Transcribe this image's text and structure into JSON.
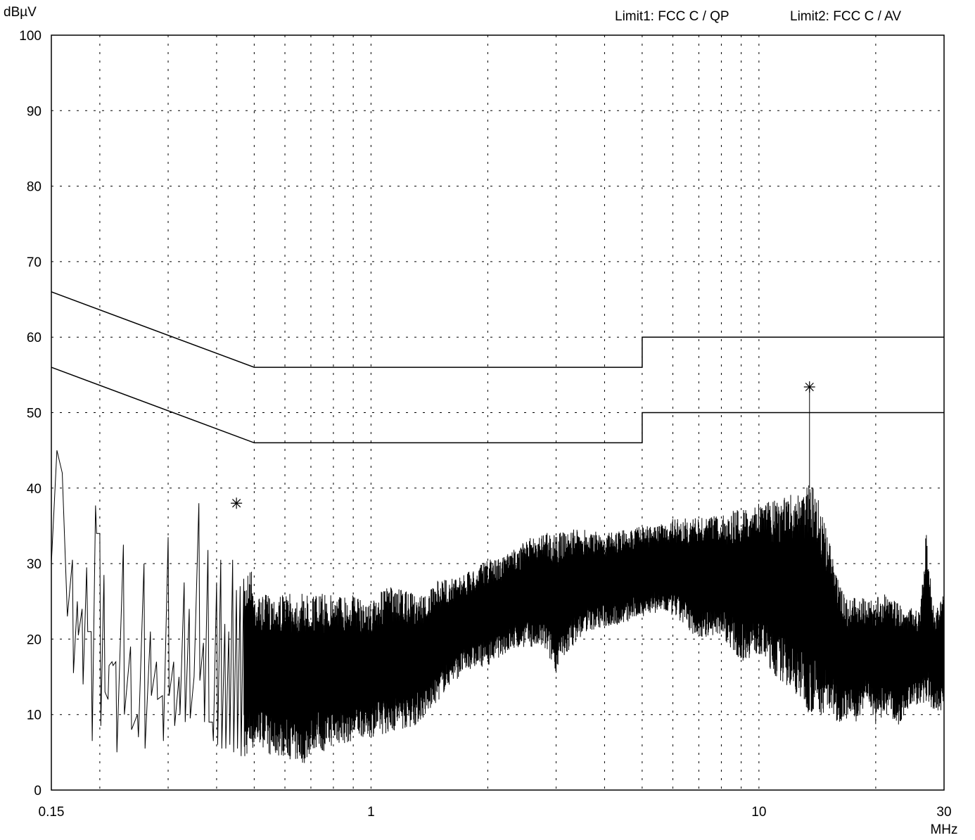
{
  "header": {
    "unit": "dBµV",
    "limit1": "Limit1: FCC C / QP",
    "limit2": "Limit2: FCC C / AV"
  },
  "chart_data": {
    "type": "line",
    "xscale": "log",
    "xlim": [
      0.15,
      30
    ],
    "ylim": [
      0,
      100
    ],
    "ylabel": "dBµV",
    "xlabel": "MHz",
    "grid": true,
    "y_ticks": [
      0,
      10,
      20,
      30,
      40,
      50,
      60,
      70,
      80,
      90,
      100
    ],
    "x_ticks": [
      0.15,
      1,
      10,
      30
    ],
    "x_tick_labels": [
      "0.15",
      "1",
      "10",
      "30"
    ],
    "x_grid": [
      0.2,
      0.3,
      0.4,
      0.5,
      0.6,
      0.7,
      0.8,
      0.9,
      2,
      3,
      4,
      5,
      6,
      7,
      8,
      9,
      20
    ],
    "series": [
      {
        "name": "Limit1: FCC C / QP",
        "x": [
          0.15,
          0.5,
          5,
          5,
          30
        ],
        "y": [
          66,
          56,
          56,
          60,
          60
        ]
      },
      {
        "name": "Limit2: FCC C / AV",
        "x": [
          0.15,
          0.5,
          5,
          5,
          30
        ],
        "y": [
          56,
          46,
          46,
          50,
          50
        ]
      },
      {
        "type": "trace",
        "x": [
          0.15,
          0.155,
          0.16,
          0.165,
          0.17,
          0.175,
          0.18,
          0.185,
          0.19,
          0.195,
          0.2,
          0.205,
          0.21,
          0.215,
          0.22,
          0.23,
          0.24,
          0.25,
          0.26,
          0.27,
          0.28,
          0.29,
          0.3,
          0.31,
          0.32,
          0.33,
          0.34,
          0.35,
          0.36,
          0.37,
          0.38,
          0.39,
          0.4,
          0.41,
          0.42,
          0.43,
          0.44,
          0.45,
          0.46,
          0.47,
          0.48,
          0.49,
          0.5,
          0.52,
          0.54,
          0.56,
          0.58,
          0.6,
          0.62,
          0.65,
          0.68,
          0.7,
          0.72,
          0.75,
          0.78,
          0.8,
          0.85,
          0.9,
          0.95,
          1.0,
          1.1,
          1.2,
          1.3,
          1.4,
          1.5,
          1.6,
          1.8,
          2.0,
          2.2,
          2.5,
          2.8,
          3.0,
          3.3,
          3.6,
          4.0,
          4.5,
          5.0,
          5.5,
          6.0,
          7.0,
          8.0,
          9.0,
          10.0,
          11.0,
          12.0,
          13.0,
          13.5,
          14.0,
          15.0,
          16.0,
          17.0,
          18.0,
          19.0,
          20.0,
          21.0,
          22.0,
          23.0,
          24.0,
          25.0,
          26.0,
          27.0,
          28.0,
          29.0,
          30.0
        ],
        "y_max": [
          30.0,
          45.0,
          42.0,
          23.0,
          30.5,
          25.0,
          24.0,
          29.5,
          21.0,
          37.7,
          34.0,
          28.5,
          12.0,
          17.0,
          17.0,
          32.5,
          19.0,
          10.0,
          30.0,
          21.0,
          17.0,
          12.5,
          33.5,
          17.0,
          15.0,
          27.5,
          24.0,
          15.0,
          38.0,
          19.5,
          31.8,
          9.0,
          27.5,
          30.5,
          22.0,
          21.0,
          30.5,
          26.5,
          27.0,
          28.0,
          29.0,
          30.0,
          26.5,
          25.5,
          26.0,
          26.0,
          26.0,
          26.0,
          26.0,
          26.0,
          26.0,
          26.0,
          26.0,
          26.0,
          26.0,
          26.0,
          26.0,
          26.0,
          25.0,
          25.0,
          27.0,
          26.5,
          26.0,
          26.0,
          28.0,
          28.0,
          29.0,
          30.5,
          31.0,
          33.0,
          34.5,
          34.0,
          34.5,
          34.5,
          34.0,
          34.5,
          35.0,
          35.0,
          36.0,
          36.0,
          36.5,
          37.5,
          38.0,
          38.5,
          39.0,
          40.5,
          41.0,
          40.0,
          34.0,
          28.0,
          25.0,
          26.0,
          25.0,
          25.5,
          26.0,
          25.5,
          25.0,
          24.0,
          24.5,
          23.5,
          34.5,
          25.0,
          24.5,
          26.0
        ],
        "y_min": [
          30.0,
          45.0,
          42.0,
          23.0,
          15.5,
          20.5,
          14.0,
          21.0,
          6.5,
          34.0,
          8.5,
          13.0,
          16.5,
          16.5,
          5.0,
          10.0,
          8.0,
          7.0,
          5.5,
          12.5,
          12.0,
          6.5,
          12.5,
          8.5,
          10.0,
          9.0,
          9.5,
          15.0,
          14.5,
          9.0,
          9.0,
          6.5,
          6.0,
          5.5,
          5.5,
          6.0,
          5.0,
          5.5,
          4.5,
          4.5,
          4.5,
          5.0,
          5.5,
          6.0,
          5.0,
          4.0,
          4.5,
          4.5,
          4.0,
          3.5,
          3.5,
          5.0,
          5.5,
          5.0,
          5.5,
          6.0,
          6.0,
          6.5,
          7.0,
          7.0,
          7.5,
          8.0,
          8.5,
          10.0,
          12.0,
          14.0,
          16.0,
          16.5,
          18.0,
          19.0,
          18.5,
          15.5,
          19.0,
          21.0,
          21.5,
          22.0,
          23.0,
          23.5,
          23.0,
          20.0,
          20.5,
          17.0,
          18.0,
          15.0,
          13.5,
          11.5,
          10.0,
          10.0,
          10.0,
          9.0,
          9.5,
          9.0,
          12.0,
          8.5,
          10.0,
          9.5,
          8.5,
          10.5,
          11.0,
          11.5,
          11.0,
          10.5,
          10.5,
          10.5
        ]
      }
    ],
    "markers": [
      {
        "x": 0.45,
        "y": 38.0,
        "symbol": "asterisk"
      },
      {
        "x": 13.5,
        "y": 53.4,
        "symbol": "asterisk"
      }
    ]
  }
}
